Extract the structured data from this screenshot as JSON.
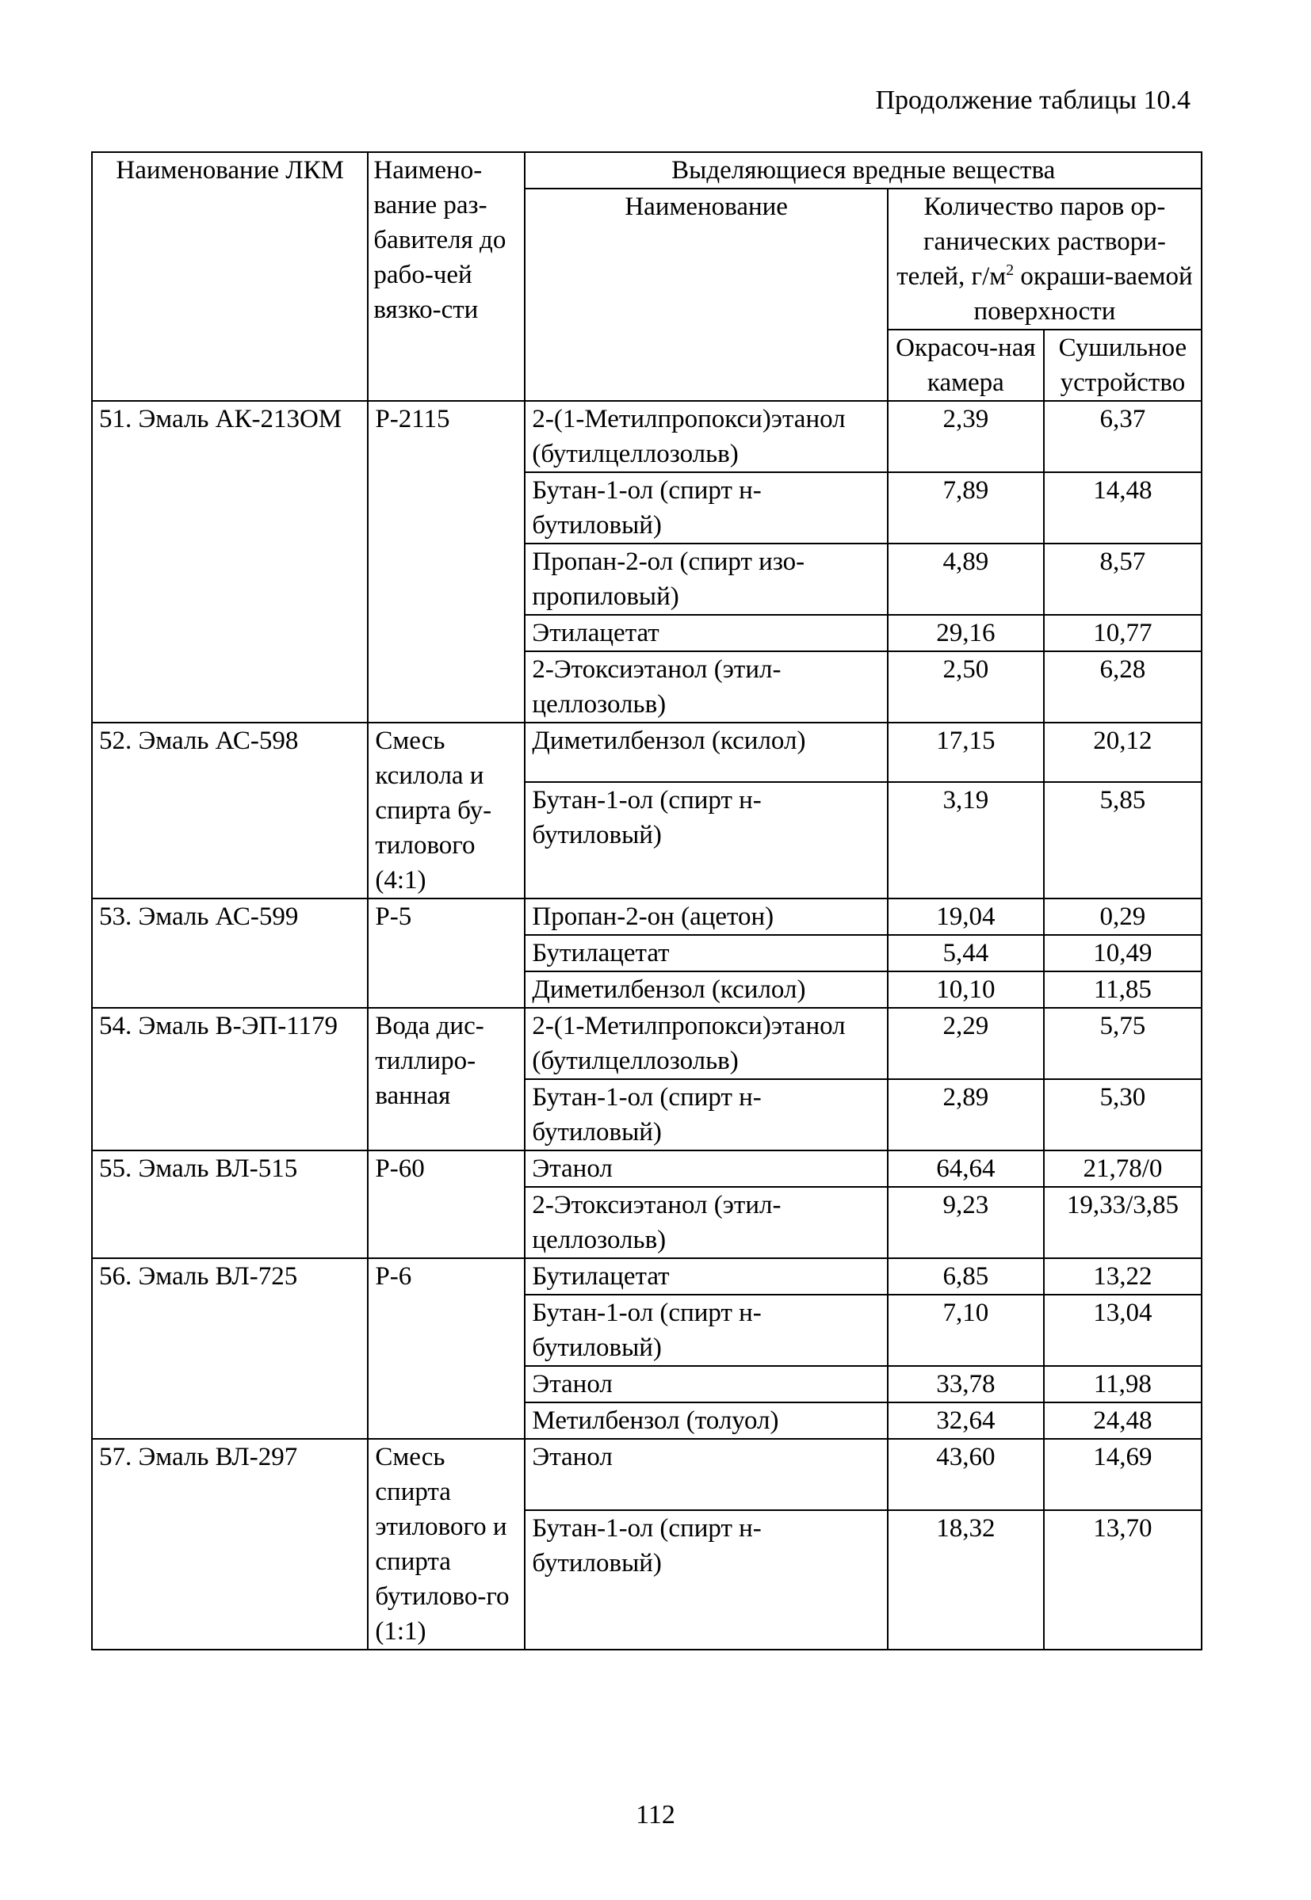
{
  "continuation": "Продолжение таблицы 10.4",
  "header": {
    "col_lkm": "Наименование ЛКМ",
    "col_thinner": "Наимено-вание раз-бавителя до рабо-чей вязко-сти",
    "col_group": "Выделяющиеся вредные вещества",
    "col_substance": "Наименование",
    "col_amount_pre": "Количество паров ор-ганических раствори-телей, г/м",
    "col_amount_sup": "2",
    "col_amount_post": " окраши-ваемой поверхности",
    "col_booth": "Окрасоч-ная камера",
    "col_dryer": "Сушильное устройство"
  },
  "groups": [
    {
      "lkm": "51. Эмаль АК-213ОМ",
      "thinner": "Р-2115",
      "rows": [
        {
          "name": "2-(1-Метилпропокси)этанол (бутилцеллозольв)",
          "booth": "2,39",
          "dryer": "6,37"
        },
        {
          "name": "Бутан-1-ол (спирт н-бутиловый)",
          "booth": "7,89",
          "dryer": "14,48"
        },
        {
          "name": "Пропан-2-ол (спирт изо-пропиловый)",
          "booth": "4,89",
          "dryer": "8,57"
        },
        {
          "name": "Этилацетат",
          "booth": "29,16",
          "dryer": "10,77"
        },
        {
          "name": "2-Этоксиэтанол (этил-целлозольв)",
          "booth": "2,50",
          "dryer": "6,28"
        }
      ]
    },
    {
      "lkm": "52. Эмаль АС-598",
      "thinner": "Смесь ксилола и спирта бу-тилового (4:1)",
      "rows": [
        {
          "name": "Диметилбензол (ксилол)",
          "booth": "17,15",
          "dryer": "20,12"
        },
        {
          "name": "Бутан-1-ол (спирт н-бутиловый)",
          "booth": "3,19",
          "dryer": "5,85"
        }
      ]
    },
    {
      "lkm": "53. Эмаль АС-599",
      "thinner": "Р-5",
      "rows": [
        {
          "name": "Пропан-2-он (ацетон)",
          "booth": "19,04",
          "dryer": "0,29"
        },
        {
          "name": "Бутилацетат",
          "booth": "5,44",
          "dryer": "10,49"
        },
        {
          "name": "Диметилбензол (ксилол)",
          "booth": "10,10",
          "dryer": "11,85"
        }
      ]
    },
    {
      "lkm": "54. Эмаль В-ЭП-1179",
      "thinner": "Вода дис-тиллиро-ванная",
      "rows": [
        {
          "name": "2-(1-Метилпропокси)этанол (бутилцеллозольв)",
          "booth": "2,29",
          "dryer": "5,75"
        },
        {
          "name": "Бутан-1-ол (спирт н-бутиловый)",
          "booth": "2,89",
          "dryer": "5,30"
        }
      ]
    },
    {
      "lkm": "55. Эмаль ВЛ-515",
      "thinner": "Р-60",
      "rows": [
        {
          "name": "Этанол",
          "booth": "64,64",
          "dryer": "21,78/0"
        },
        {
          "name": "2-Этоксиэтанол (этил-целлозольв)",
          "booth": "9,23",
          "dryer": "19,33/3,85"
        }
      ]
    },
    {
      "lkm": "56. Эмаль ВЛ-725",
      "thinner": "Р-6",
      "rows": [
        {
          "name": "Бутилацетат",
          "booth": "6,85",
          "dryer": "13,22"
        },
        {
          "name": "Бутан-1-ол (спирт н-бутиловый)",
          "booth": "7,10",
          "dryer": "13,04"
        },
        {
          "name": "Этанол",
          "booth": "33,78",
          "dryer": "11,98"
        },
        {
          "name": "Метилбензол (толуол)",
          "booth": "32,64",
          "dryer": "24,48"
        }
      ]
    },
    {
      "lkm": "57. Эмаль ВЛ-297",
      "thinner": "Смесь спирта этилового и спирта бутилово-го (1:1)",
      "rows": [
        {
          "name": "Этанол",
          "booth": "43,60",
          "dryer": "14,69"
        },
        {
          "name": "Бутан-1-ол (спирт н-бутиловый)",
          "booth": "18,32",
          "dryer": "13,70"
        }
      ]
    }
  ],
  "page_number": "112"
}
